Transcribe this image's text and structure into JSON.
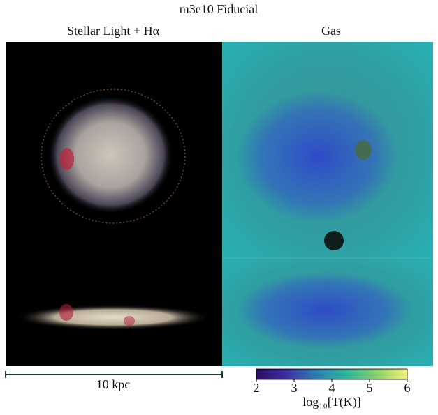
{
  "title": "m3e10 Fiducial",
  "panels": {
    "left_title": "Stellar Light + Hα",
    "right_title": "Gas"
  },
  "scale_bar": {
    "label": "10 kpc"
  },
  "colorbar": {
    "lim": [
      2,
      6
    ],
    "ticks": [
      2,
      3,
      4,
      5,
      6
    ],
    "label": "log₁₀[T(K)]"
  }
}
